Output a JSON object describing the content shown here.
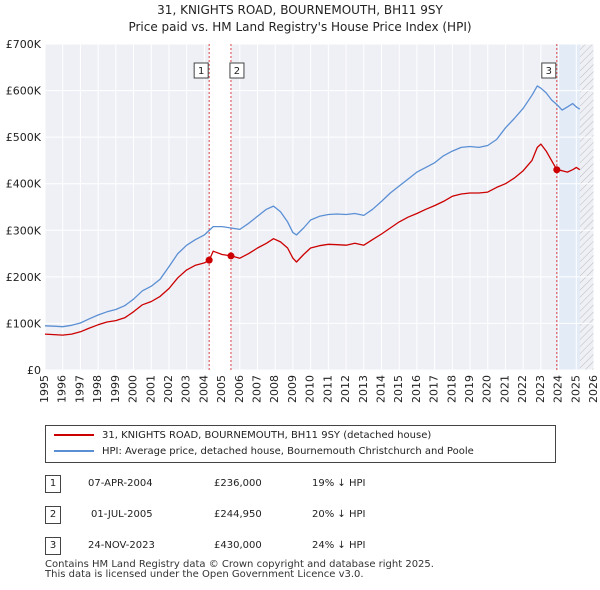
{
  "title_line1": "31, KNIGHTS ROAD, BOURNEMOUTH, BH11 9SY",
  "title_line2": "Price paid vs. HM Land Registry's House Price Index (HPI)",
  "chart_data": {
    "type": "line",
    "ylim": [
      0,
      700000
    ],
    "xlim": [
      1995,
      2026
    ],
    "y_tick_values": [
      0,
      100000,
      200000,
      300000,
      400000,
      500000,
      600000,
      700000
    ],
    "y_tick_labels": [
      "£0",
      "£100K",
      "£200K",
      "£300K",
      "£400K",
      "£500K",
      "£600K",
      "£700K"
    ],
    "x_tick_labels": [
      "1995",
      "1996",
      "1997",
      "1998",
      "1999",
      "2000",
      "2001",
      "2002",
      "2003",
      "2004",
      "2005",
      "2006",
      "2007",
      "2008",
      "2009",
      "2010",
      "2011",
      "2012",
      "2013",
      "2014",
      "2015",
      "2016",
      "2017",
      "2018",
      "2019",
      "2020",
      "2021",
      "2022",
      "2023",
      "2024",
      "2025",
      "2026"
    ],
    "grid": true,
    "series": [
      {
        "name": "31, KNIGHTS ROAD, BOURNEMOUTH, BH11 9SY (detached house)",
        "color": "#cc0000",
        "x": [
          1995.0,
          1995.5,
          1996.0,
          1996.5,
          1997.0,
          1997.5,
          1998.0,
          1998.5,
          1999.0,
          1999.5,
          2000.0,
          2000.5,
          2001.0,
          2001.5,
          2002.0,
          2002.5,
          2003.0,
          2003.5,
          2004.0,
          2004.27,
          2004.5,
          2005.0,
          2005.5,
          2006.0,
          2006.5,
          2007.0,
          2007.5,
          2007.9,
          2008.3,
          2008.7,
          2009.0,
          2009.2,
          2009.6,
          2010.0,
          2010.5,
          2011.0,
          2011.5,
          2012.0,
          2012.5,
          2013.0,
          2013.5,
          2014.0,
          2014.5,
          2015.0,
          2015.5,
          2016.0,
          2016.5,
          2017.0,
          2017.5,
          2018.0,
          2018.5,
          2019.0,
          2019.5,
          2020.0,
          2020.5,
          2021.0,
          2021.5,
          2022.0,
          2022.5,
          2022.8,
          2023.0,
          2023.3,
          2023.6,
          2023.9,
          2024.2,
          2024.5,
          2024.8,
          2025.0,
          2025.2
        ],
        "values": [
          77000,
          76000,
          75000,
          77000,
          82000,
          90000,
          97000,
          103000,
          106000,
          112000,
          125000,
          140000,
          147000,
          158000,
          175000,
          198000,
          215000,
          225000,
          230000,
          236000,
          255000,
          248000,
          244950,
          240000,
          250000,
          262000,
          272000,
          282000,
          275000,
          262000,
          240000,
          232000,
          248000,
          262000,
          267000,
          270000,
          269000,
          268000,
          272000,
          268000,
          280000,
          292000,
          305000,
          318000,
          328000,
          336000,
          345000,
          353000,
          362000,
          373000,
          378000,
          380000,
          380000,
          382000,
          392000,
          400000,
          412000,
          428000,
          450000,
          478000,
          485000,
          470000,
          450000,
          430000,
          428000,
          425000,
          430000,
          435000,
          430000
        ]
      },
      {
        "name": "HPI: Average price, detached house, Bournemouth Christchurch and Poole",
        "color": "#5b8fd4",
        "x": [
          1995.0,
          1995.5,
          1996.0,
          1996.5,
          1997.0,
          1997.5,
          1998.0,
          1998.5,
          1999.0,
          1999.5,
          2000.0,
          2000.5,
          2001.0,
          2001.5,
          2002.0,
          2002.5,
          2003.0,
          2003.5,
          2004.0,
          2004.5,
          2005.0,
          2005.5,
          2006.0,
          2006.5,
          2007.0,
          2007.5,
          2007.9,
          2008.3,
          2008.7,
          2009.0,
          2009.2,
          2009.6,
          2010.0,
          2010.5,
          2011.0,
          2011.5,
          2012.0,
          2012.5,
          2013.0,
          2013.5,
          2014.0,
          2014.5,
          2015.0,
          2015.5,
          2016.0,
          2016.5,
          2017.0,
          2017.5,
          2018.0,
          2018.5,
          2019.0,
          2019.5,
          2020.0,
          2020.5,
          2021.0,
          2021.5,
          2022.0,
          2022.5,
          2022.8,
          2023.0,
          2023.3,
          2023.6,
          2023.9,
          2024.2,
          2024.5,
          2024.8,
          2025.0,
          2025.2
        ],
        "values": [
          95000,
          94000,
          93000,
          96000,
          101000,
          110000,
          118000,
          125000,
          130000,
          138000,
          152000,
          170000,
          180000,
          195000,
          222000,
          250000,
          268000,
          280000,
          290000,
          308000,
          308000,
          305000,
          302000,
          315000,
          330000,
          345000,
          352000,
          340000,
          318000,
          295000,
          290000,
          305000,
          322000,
          330000,
          334000,
          335000,
          334000,
          336000,
          332000,
          345000,
          362000,
          380000,
          395000,
          410000,
          425000,
          435000,
          445000,
          460000,
          470000,
          478000,
          480000,
          478000,
          482000,
          495000,
          520000,
          540000,
          562000,
          590000,
          610000,
          605000,
          595000,
          580000,
          570000,
          558000,
          565000,
          572000,
          565000,
          560000
        ]
      }
    ],
    "sales": [
      {
        "label": "1",
        "x": 2004.27,
        "price": 236000
      },
      {
        "label": "2",
        "x": 2005.5,
        "price": 244950
      },
      {
        "label": "3",
        "x": 2023.9,
        "price": 430000
      }
    ],
    "hatch_start_year": 2025.2
  },
  "legend": {
    "series1": "31, KNIGHTS ROAD, BOURNEMOUTH, BH11 9SY (detached house)",
    "series2": "HPI: Average price, detached house, Bournemouth Christchurch and Poole"
  },
  "transactions": [
    {
      "num": "1",
      "date": "07-APR-2004",
      "price": "£236,000",
      "delta": "19% ↓ HPI"
    },
    {
      "num": "2",
      "date": "01-JUL-2005",
      "price": "£244,950",
      "delta": "20% ↓ HPI"
    },
    {
      "num": "3",
      "date": "24-NOV-2023",
      "price": "£430,000",
      "delta": "24% ↓ HPI"
    }
  ],
  "footer": {
    "line1": "Contains HM Land Registry data © Crown copyright and database right 2025.",
    "line2": "This data is licensed under the Open Government Licence v3.0."
  }
}
